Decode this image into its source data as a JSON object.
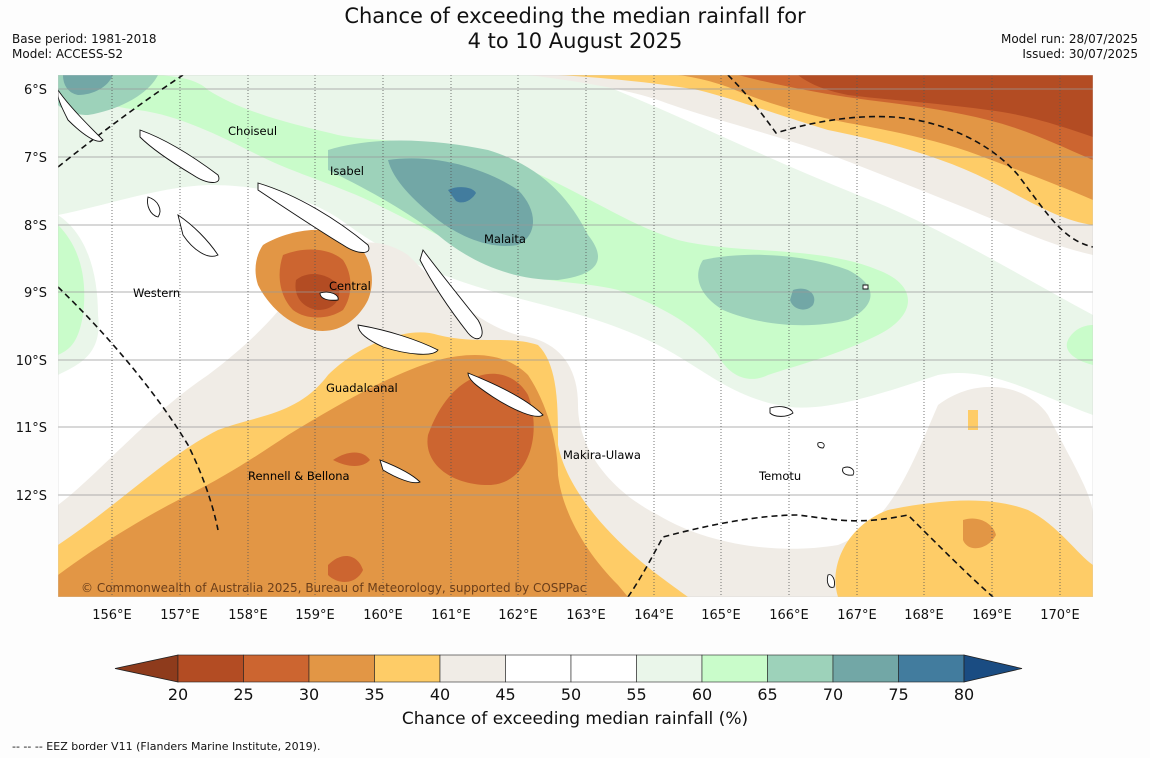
{
  "title": {
    "line1": "Chance of exceeding the median rainfall for",
    "line2": "4 to 10 August 2025"
  },
  "meta_left": {
    "base_period": "Base period: 1981-2018",
    "model": "Model: ACCESS-S2"
  },
  "meta_right": {
    "model_run": "Model run: 28/07/2025",
    "issued": "Issued: 30/07/2025"
  },
  "map": {
    "lat_labels": [
      "6°S",
      "7°S",
      "8°S",
      "9°S",
      "10°S",
      "11°S",
      "12°S"
    ],
    "lon_labels": [
      "156°E",
      "157°E",
      "158°E",
      "159°E",
      "160°E",
      "161°E",
      "162°E",
      "163°E",
      "164°E",
      "165°E",
      "166°E",
      "167°E",
      "168°E",
      "169°E",
      "170°E"
    ],
    "province_labels": {
      "choiseul": "Choiseul",
      "isabel": "Isabel",
      "malaita": "Malaita",
      "central": "Central",
      "western": "Western",
      "guadalcanal": "Guadalcanal",
      "makira": "Makira-Ulawa",
      "rennell": "Rennell & Bellona",
      "temotu": "Temotu"
    },
    "copyright": "© Commonwealth of Australia 2025, Bureau of Meteorology, supported by COSPPac"
  },
  "colorbar": {
    "ticks": [
      "20",
      "25",
      "30",
      "35",
      "40",
      "45",
      "50",
      "55",
      "60",
      "65",
      "70",
      "75",
      "80"
    ],
    "colors": {
      "lt20": "#8e3b1c",
      "b20_25": "#b34c23",
      "b25_30": "#cc6530",
      "b30_35": "#e29645",
      "b35_40": "#fecc67",
      "b40_45": "#f0ece6",
      "b45_50": "#ffffff",
      "b50_55": "#ffffff",
      "b55_60": "#eaf6ea",
      "b60_65": "#c9fcca",
      "b65_70": "#9dd2ba",
      "b70_75": "#72a7a6",
      "b75_80": "#427c9e",
      "gt80": "#1a4c82"
    },
    "label": "Chance of exceeding median rainfall (%)"
  },
  "footnote": "--  --  -- EEZ border V11 (Flanders Marine Institute, 2019)."
}
